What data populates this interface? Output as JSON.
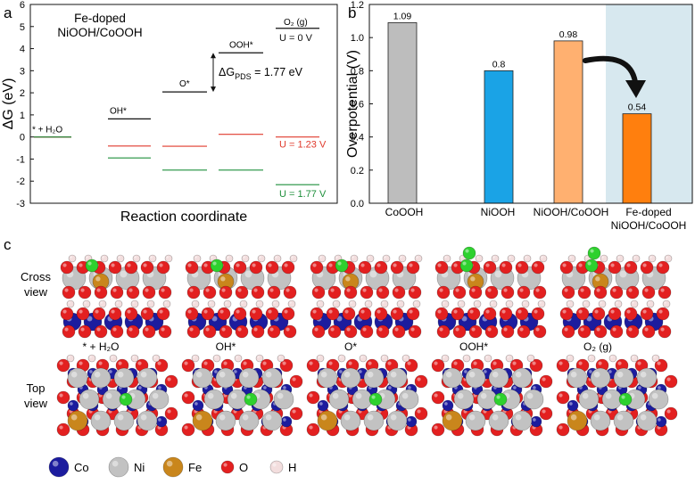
{
  "panels": {
    "a": "a",
    "b": "b",
    "c": "c"
  },
  "chart_data": [
    {
      "type": "line",
      "panel": "a",
      "title": "Fe-doped\nNiOOH/CoOOH",
      "ylabel": "ΔG (eV)",
      "xlabel": "Reaction coordinate",
      "ylim": [
        -3,
        6
      ],
      "yticks": [
        "-3",
        "-2",
        "-1",
        "0",
        "1",
        "2",
        "3",
        "4",
        "5",
        "6"
      ],
      "steps": [
        "* + H2O",
        "OH*",
        "O*",
        "OOH*",
        "O2 (g)"
      ],
      "step_labels": [
        "* + H₂O",
        "OH*",
        "O*",
        "OOH*",
        "O₂ (g)"
      ],
      "series": [
        {
          "name": "U = 0 V",
          "color": "#111111",
          "values": [
            0.0,
            0.82,
            2.04,
            3.81,
            4.92
          ]
        },
        {
          "name": "U = 1.23 V",
          "color": "#e0392b",
          "values": [
            0.0,
            -0.41,
            -0.42,
            0.12,
            0.0
          ]
        },
        {
          "name": "U = 1.77 V",
          "color": "#1e8f3b",
          "values": [
            0.0,
            -0.95,
            -1.5,
            -1.5,
            -2.16
          ]
        }
      ],
      "annotation": {
        "label_prefix": "ΔG",
        "label_sub": "PDS",
        "label_value": "= 1.77 eV"
      }
    },
    {
      "type": "bar",
      "panel": "b",
      "ylabel": "Overpotential (V)",
      "ylim": [
        0.0,
        1.2
      ],
      "yticks": [
        "0.0",
        "0.2",
        "0.4",
        "0.6",
        "0.8",
        "1.0",
        "1.2"
      ],
      "categories": [
        "CoOOH",
        "NiOOH",
        "NiOOH/CoOOH",
        "Fe-doped\nNiOOH/CoOOH"
      ],
      "values": [
        1.09,
        0.8,
        0.98,
        0.54
      ],
      "value_labels": [
        "1.09",
        "0.8",
        "0.98",
        "0.54"
      ],
      "colors": [
        "#bdbdbd",
        "#1aa3e6",
        "#ffb070",
        "#ff7f0e"
      ],
      "highlight_band_color": "#d7e8ef"
    }
  ],
  "structures": {
    "row_labels": [
      "Cross\nview",
      "Top\nview"
    ],
    "columns": [
      "* + H₂O",
      "OH*",
      "O*",
      "OOH*",
      "O₂ (g)"
    ],
    "legend": [
      {
        "name": "Co",
        "color": "#1c1c9e"
      },
      {
        "name": "Ni",
        "color": "#c2c2c2"
      },
      {
        "name": "Fe",
        "color": "#c9861c"
      },
      {
        "name": "O",
        "color": "#e32020"
      },
      {
        "name": "H",
        "color": "#f3dede"
      }
    ],
    "adsorbate_color": "#2ed12e"
  }
}
